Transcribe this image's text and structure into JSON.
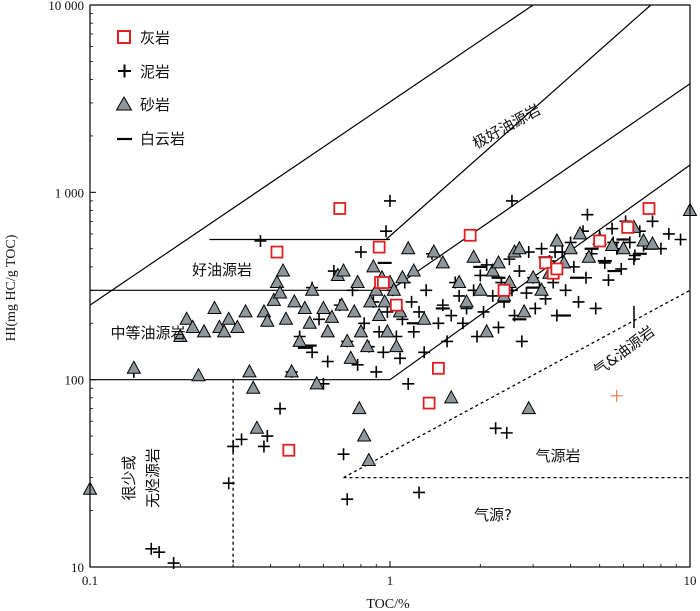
{
  "chart_data": {
    "type": "scatter",
    "title": "",
    "xlabel": "TOC/%",
    "ylabel": "HI(mg HC/g TOC)",
    "xscale": "log",
    "yscale": "log",
    "xlim": [
      0.1,
      10
    ],
    "ylim": [
      10,
      10000
    ],
    "x_ticks": [
      {
        "v": 0.1,
        "label": "0.1"
      },
      {
        "v": 1,
        "label": "1"
      },
      {
        "v": 10,
        "label": "10"
      }
    ],
    "y_ticks": [
      {
        "v": 10,
        "label": "10"
      },
      {
        "v": 100,
        "label": "100"
      },
      {
        "v": 1000,
        "label": "1 000"
      },
      {
        "v": 10000,
        "label": "10 000"
      }
    ],
    "grid": false,
    "legend_position": "top-left",
    "legend": [
      {
        "label": "灰岩",
        "marker": "square",
        "color": "#e02020"
      },
      {
        "label": "泥岩",
        "marker": "plus",
        "color": "#000000"
      },
      {
        "label": "砂岩",
        "marker": "triangle",
        "color": "#8e979b"
      },
      {
        "label": "白云岩",
        "marker": "dash",
        "color": "#000000"
      }
    ],
    "region_labels": [
      "极好油源岩",
      "好油源岩",
      "中等油源岩",
      "很少或",
      "无烃源岩",
      "气源岩",
      "气&油源岩",
      "气源?"
    ],
    "series": [
      {
        "name": "灰岩",
        "marker": "square",
        "points": [
          [
            0.42,
            480
          ],
          [
            0.46,
            42
          ],
          [
            0.68,
            820
          ],
          [
            0.92,
            510
          ],
          [
            0.93,
            330
          ],
          [
            0.95,
            330
          ],
          [
            1.05,
            250
          ],
          [
            1.35,
            75
          ],
          [
            1.45,
            115
          ],
          [
            1.85,
            590
          ],
          [
            2.4,
            300
          ],
          [
            3.3,
            420
          ],
          [
            3.5,
            370
          ],
          [
            3.6,
            390
          ],
          [
            5.0,
            550
          ],
          [
            6.2,
            650
          ],
          [
            7.3,
            820
          ]
        ]
      },
      {
        "name": "泥岩",
        "marker": "plus",
        "points": [
          [
            0.14,
            110
          ],
          [
            0.16,
            12.5
          ],
          [
            0.17,
            12
          ],
          [
            0.19,
            10.5
          ],
          [
            0.29,
            28
          ],
          [
            0.3,
            44
          ],
          [
            0.32,
            48
          ],
          [
            0.37,
            550
          ],
          [
            0.38,
            44
          ],
          [
            0.39,
            50
          ],
          [
            0.43,
            70
          ],
          [
            0.47,
            110
          ],
          [
            0.5,
            170
          ],
          [
            0.55,
            310
          ],
          [
            0.55,
            140
          ],
          [
            0.58,
            210
          ],
          [
            0.6,
            95
          ],
          [
            0.62,
            125
          ],
          [
            0.65,
            380
          ],
          [
            0.68,
            250
          ],
          [
            0.7,
            40
          ],
          [
            0.72,
            23
          ],
          [
            0.72,
            160
          ],
          [
            0.75,
            300
          ],
          [
            0.78,
            120
          ],
          [
            0.8,
            480
          ],
          [
            0.82,
            200
          ],
          [
            0.85,
            150
          ],
          [
            0.88,
            260
          ],
          [
            0.9,
            110
          ],
          [
            0.92,
            180
          ],
          [
            0.95,
            140
          ],
          [
            0.98,
            230
          ],
          [
            1.02,
            300
          ],
          [
            1.05,
            170
          ],
          [
            1.08,
            130
          ],
          [
            1.1,
            210
          ],
          [
            1.12,
            330
          ],
          [
            1.15,
            95
          ],
          [
            1.18,
            260
          ],
          [
            1.2,
            180
          ],
          [
            1.25,
            230
          ],
          [
            1.25,
            25
          ],
          [
            1.3,
            140
          ],
          [
            1.32,
            300
          ],
          [
            1.38,
            470
          ],
          [
            1.45,
            200
          ],
          [
            1.5,
            250
          ],
          [
            1.55,
            160
          ],
          [
            1.6,
            220
          ],
          [
            1.65,
            330
          ],
          [
            1.7,
            280
          ],
          [
            1.75,
            200
          ],
          [
            1.8,
            240
          ],
          [
            1.9,
            300
          ],
          [
            1.95,
            170
          ],
          [
            2.0,
            360
          ],
          [
            2.05,
            230
          ],
          [
            2.1,
            410
          ],
          [
            2.2,
            280
          ],
          [
            2.25,
            55
          ],
          [
            2.3,
            190
          ],
          [
            2.35,
            330
          ],
          [
            2.4,
            260
          ],
          [
            2.45,
            52
          ],
          [
            2.5,
            440
          ],
          [
            2.55,
            300
          ],
          [
            2.6,
            220
          ],
          [
            2.7,
            380
          ],
          [
            2.75,
            160
          ],
          [
            2.85,
            290
          ],
          [
            2.9,
            480
          ],
          [
            3.0,
            350
          ],
          [
            3.05,
            240
          ],
          [
            3.15,
            310
          ],
          [
            3.2,
            500
          ],
          [
            3.3,
            270
          ],
          [
            3.4,
            430
          ],
          [
            3.5,
            330
          ],
          [
            3.6,
            220
          ],
          [
            3.75,
            480
          ],
          [
            3.85,
            300
          ],
          [
            4.0,
            540
          ],
          [
            4.1,
            400
          ],
          [
            4.25,
            260
          ],
          [
            4.4,
            620
          ],
          [
            4.5,
            350
          ],
          [
            4.7,
            470
          ],
          [
            4.85,
            240
          ],
          [
            5.0,
            580
          ],
          [
            5.2,
            420
          ],
          [
            5.35,
            340
          ],
          [
            5.5,
            640
          ],
          [
            5.7,
            500
          ],
          [
            5.9,
            390
          ],
          [
            6.1,
            700
          ],
          [
            6.3,
            540
          ],
          [
            6.5,
            440
          ],
          [
            6.8,
            620
          ],
          [
            7.0,
            520
          ],
          [
            7.5,
            700
          ],
          [
            8.0,
            500
          ],
          [
            8.5,
            600
          ],
          [
            9.3,
            560
          ],
          [
            1.0,
            900
          ],
          [
            0.97,
            620
          ],
          [
            2.55,
            900
          ],
          [
            3.55,
            480
          ],
          [
            4.55,
            760
          ],
          [
            5.55,
            540
          ],
          [
            6.55,
            460
          ]
        ]
      },
      {
        "name": "砂岩",
        "marker": "triangle",
        "points": [
          [
            0.1,
            26
          ],
          [
            0.14,
            115
          ],
          [
            0.2,
            170
          ],
          [
            0.21,
            210
          ],
          [
            0.22,
            190
          ],
          [
            0.23,
            105
          ],
          [
            0.24,
            180
          ],
          [
            0.26,
            240
          ],
          [
            0.27,
            190
          ],
          [
            0.28,
            180
          ],
          [
            0.29,
            210
          ],
          [
            0.31,
            190
          ],
          [
            0.33,
            230
          ],
          [
            0.34,
            110
          ],
          [
            0.35,
            90
          ],
          [
            0.36,
            55
          ],
          [
            0.38,
            230
          ],
          [
            0.39,
            205
          ],
          [
            0.41,
            265
          ],
          [
            0.42,
            330
          ],
          [
            0.43,
            290
          ],
          [
            0.44,
            380
          ],
          [
            0.45,
            210
          ],
          [
            0.47,
            110
          ],
          [
            0.48,
            260
          ],
          [
            0.5,
            160
          ],
          [
            0.52,
            240
          ],
          [
            0.54,
            200
          ],
          [
            0.55,
            300
          ],
          [
            0.57,
            95
          ],
          [
            0.6,
            240
          ],
          [
            0.62,
            180
          ],
          [
            0.64,
            215
          ],
          [
            0.67,
            360
          ],
          [
            0.69,
            250
          ],
          [
            0.7,
            380
          ],
          [
            0.72,
            160
          ],
          [
            0.74,
            130
          ],
          [
            0.76,
            230
          ],
          [
            0.78,
            330
          ],
          [
            0.79,
            70
          ],
          [
            0.8,
            180
          ],
          [
            0.82,
            50
          ],
          [
            0.84,
            150
          ],
          [
            0.85,
            37
          ],
          [
            0.86,
            260
          ],
          [
            0.88,
            400
          ],
          [
            0.9,
            300
          ],
          [
            0.92,
            220
          ],
          [
            0.94,
            350
          ],
          [
            0.96,
            260
          ],
          [
            0.98,
            180
          ],
          [
            1.0,
            330
          ],
          [
            1.03,
            300
          ],
          [
            1.05,
            150
          ],
          [
            1.08,
            230
          ],
          [
            1.1,
            350
          ],
          [
            1.15,
            500
          ],
          [
            1.2,
            380
          ],
          [
            1.3,
            210
          ],
          [
            1.4,
            480
          ],
          [
            1.5,
            420
          ],
          [
            1.6,
            80
          ],
          [
            1.7,
            330
          ],
          [
            1.8,
            260
          ],
          [
            1.9,
            450
          ],
          [
            2.0,
            300
          ],
          [
            2.1,
            180
          ],
          [
            2.2,
            380
          ],
          [
            2.3,
            420
          ],
          [
            2.4,
            280
          ],
          [
            2.5,
            330
          ],
          [
            2.6,
            480
          ],
          [
            2.7,
            500
          ],
          [
            2.8,
            230
          ],
          [
            2.9,
            70
          ],
          [
            3.0,
            350
          ],
          [
            3.2,
            300
          ],
          [
            3.4,
            370
          ],
          [
            3.6,
            550
          ],
          [
            3.8,
            420
          ],
          [
            4.0,
            500
          ],
          [
            4.3,
            600
          ],
          [
            4.6,
            450
          ],
          [
            5.0,
            560
          ],
          [
            5.5,
            520
          ],
          [
            6.0,
            500
          ],
          [
            6.5,
            650
          ],
          [
            7.0,
            550
          ],
          [
            7.5,
            530
          ],
          [
            10.0,
            800
          ]
        ]
      },
      {
        "name": "白云岩",
        "marker": "dash",
        "points": [
          [
            0.52,
            148
          ],
          [
            0.54,
            152
          ],
          [
            0.96,
            420
          ],
          [
            1.2,
            200
          ],
          [
            1.5,
            240
          ],
          [
            2.0,
            400
          ],
          [
            2.3,
            350
          ],
          [
            2.7,
            210
          ],
          [
            3.0,
            310
          ],
          [
            3.3,
            450
          ],
          [
            3.8,
            220
          ],
          [
            4.2,
            350
          ],
          [
            4.7,
            500
          ],
          [
            5.2,
            430
          ],
          [
            5.6,
            380
          ],
          [
            6.0,
            560
          ],
          [
            6.8,
            470
          ],
          [
            7.4,
            500
          ]
        ]
      },
      {
        "name": "",
        "marker": "plus-orange",
        "points": [
          [
            5.7,
            82
          ]
        ]
      }
    ]
  }
}
